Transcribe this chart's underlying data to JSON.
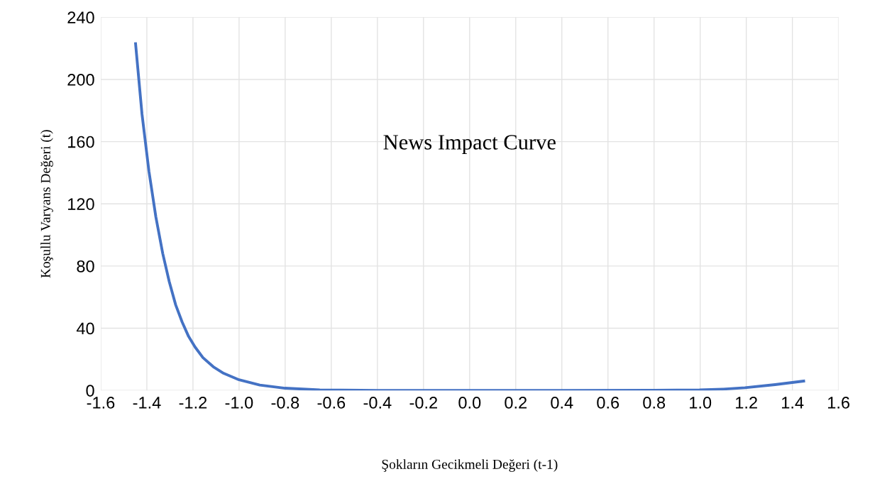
{
  "chart_data": {
    "type": "line",
    "title": "News Impact Curve",
    "xlabel": "Şokların Gecikmeli Değeri (t-1)",
    "ylabel": "Koşullu Varyans Değeri (t)",
    "series": [
      {
        "color": "#4472c4",
        "x": [
          -1.449,
          -1.421,
          -1.391,
          -1.361,
          -1.331,
          -1.303,
          -1.275,
          -1.247,
          -1.219,
          -1.191,
          -1.157,
          -1.112,
          -1.067,
          -1.0,
          -0.91,
          -0.8,
          -0.65,
          -0.4,
          0.0,
          0.4,
          0.8,
          0.997,
          1.1,
          1.194,
          1.325,
          1.449
        ],
        "values": [
          223,
          177.6,
          141,
          111.6,
          88,
          70,
          55,
          44,
          34.7,
          27.9,
          21.1,
          15.2,
          11,
          6.8,
          3.4,
          1.4,
          0.3,
          0,
          0,
          0,
          0.1,
          0.3,
          0.8,
          1.7,
          3.7,
          6.0
        ]
      }
    ],
    "xlim": [
      -1.6,
      1.6
    ],
    "xticks": [
      {
        "value": -1.6,
        "label": "-1.6"
      },
      {
        "value": -1.4,
        "label": "-1.4"
      },
      {
        "value": -1.2,
        "label": "-1.2"
      },
      {
        "value": -1.0,
        "label": "-1.0"
      },
      {
        "value": -0.8,
        "label": "-0.8"
      },
      {
        "value": -0.6,
        "label": "-0.6"
      },
      {
        "value": -0.4,
        "label": "-0.4"
      },
      {
        "value": -0.2,
        "label": "-0.2"
      },
      {
        "value": 0.0,
        "label": "0.0"
      },
      {
        "value": 0.2,
        "label": "0.2"
      },
      {
        "value": 0.4,
        "label": "0.4"
      },
      {
        "value": 0.6,
        "label": "0.6"
      },
      {
        "value": 0.8,
        "label": "0.8"
      },
      {
        "value": 1.0,
        "label": "1.0"
      },
      {
        "value": 1.2,
        "label": "1.2"
      },
      {
        "value": 1.4,
        "label": "1.4"
      },
      {
        "value": 1.6,
        "label": "1.6"
      }
    ],
    "ylim": [
      0,
      240
    ],
    "yticks": [
      0,
      40,
      80,
      120,
      160,
      200,
      240
    ],
    "grid": true,
    "marker": "none",
    "line_style": "solid"
  }
}
